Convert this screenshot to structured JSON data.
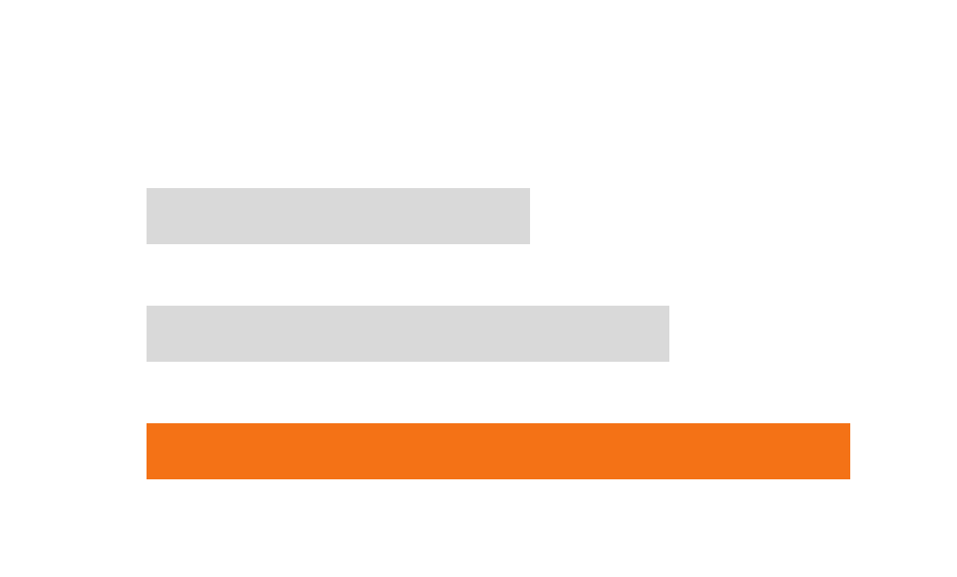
{
  "chart_data": {
    "type": "bar",
    "orientation": "horizontal",
    "categories": [
      "",
      "",
      ""
    ],
    "values": [
      424,
      578,
      778
    ],
    "xlim": [
      0,
      778
    ],
    "grid": false,
    "legend": "none",
    "axes_visible": false,
    "highlight_index": 2,
    "colors": {
      "default": "#d9d9d9",
      "highlight": "#f47216",
      "background": "#ffffff"
    }
  }
}
